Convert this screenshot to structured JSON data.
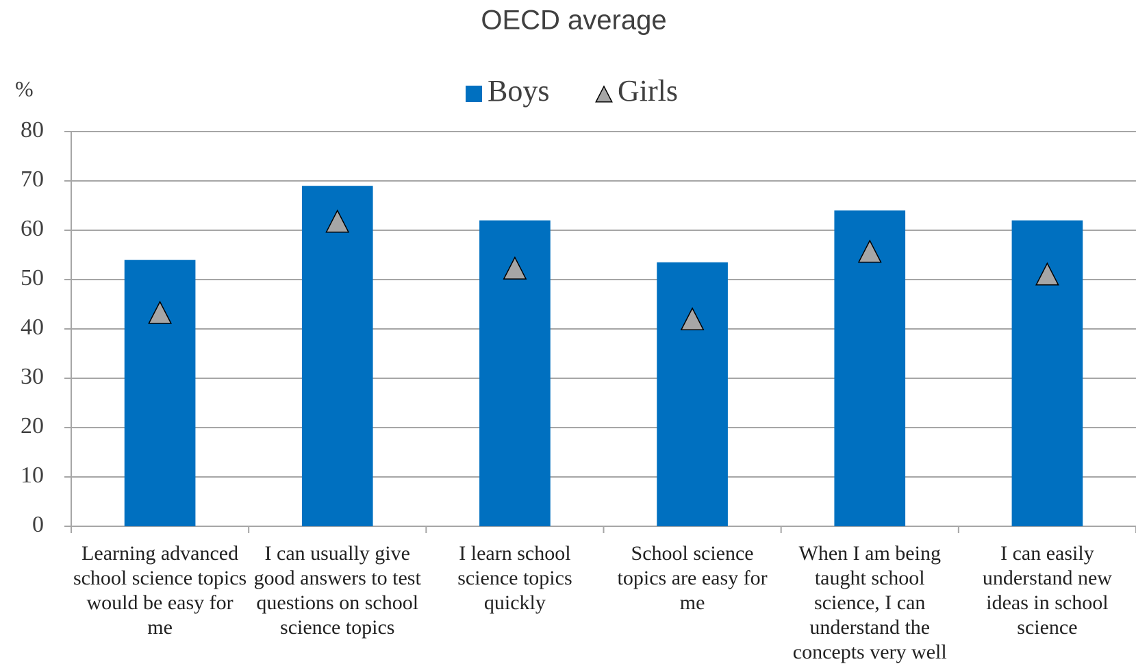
{
  "chart_data": {
    "type": "bar",
    "title": "OECD average",
    "y_label": "%",
    "categories": [
      "Learning advanced school science topics would be easy for me",
      "I can usually give good answers to test questions on school science topics",
      "I learn school science topics quickly",
      "School science topics are easy for me",
      "When I am being taught school science, I can understand the concepts very well",
      "I can easily understand new ideas in school science"
    ],
    "series": [
      {
        "name": "Boys",
        "color": "#0070c0",
        "marker": "bar",
        "values": [
          54,
          69,
          62,
          53.5,
          64,
          62
        ]
      },
      {
        "name": "Girls",
        "color": "#a6a6a6",
        "marker": "triangle",
        "values": [
          43,
          61.5,
          52,
          41.7,
          55.4,
          50.8
        ]
      }
    ],
    "ylim": [
      0,
      80
    ],
    "yticks": [
      0,
      10,
      20,
      30,
      40,
      50,
      60,
      70,
      80
    ],
    "grid": true,
    "legend": "top"
  }
}
